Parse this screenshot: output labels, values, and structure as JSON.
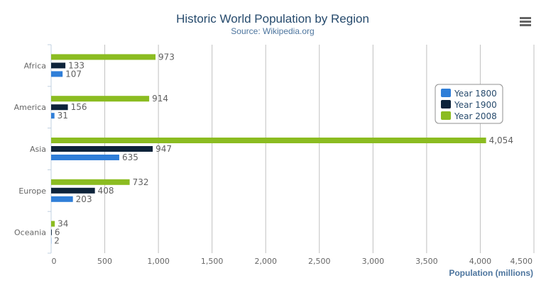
{
  "chart_data": {
    "type": "bar",
    "orientation": "horizontal",
    "title": "Historic World Population by Region",
    "subtitle": "Source: Wikipedia.org",
    "categories": [
      "Africa",
      "America",
      "Asia",
      "Europe",
      "Oceania"
    ],
    "series": [
      {
        "name": "Year 1800",
        "color": "#2f7ed8",
        "values": [
          107,
          31,
          635,
          203,
          2
        ]
      },
      {
        "name": "Year 1900",
        "color": "#0d233a",
        "values": [
          133,
          156,
          947,
          408,
          6
        ]
      },
      {
        "name": "Year 2008",
        "color": "#8bbc21",
        "values": [
          973,
          914,
          4054,
          732,
          34
        ]
      }
    ],
    "value_labels": {
      "Year 1800": [
        "107",
        "31",
        "635",
        "203",
        "2"
      ],
      "Year 1900": [
        "133",
        "156",
        "947",
        "408",
        "6"
      ],
      "Year 2008": [
        "973",
        "914",
        "4,054",
        "732",
        "34"
      ]
    },
    "xlabel": "",
    "ylabel": "Population (millions)",
    "ylim": [
      0,
      4500
    ],
    "ticks": [
      "0",
      "500",
      "1,000",
      "1,500",
      "2,000",
      "2,500",
      "3,000",
      "3,500",
      "4,000",
      "4,500"
    ],
    "grid": true,
    "legend_position": "right"
  },
  "menu_icon": "hamburger-menu-icon"
}
